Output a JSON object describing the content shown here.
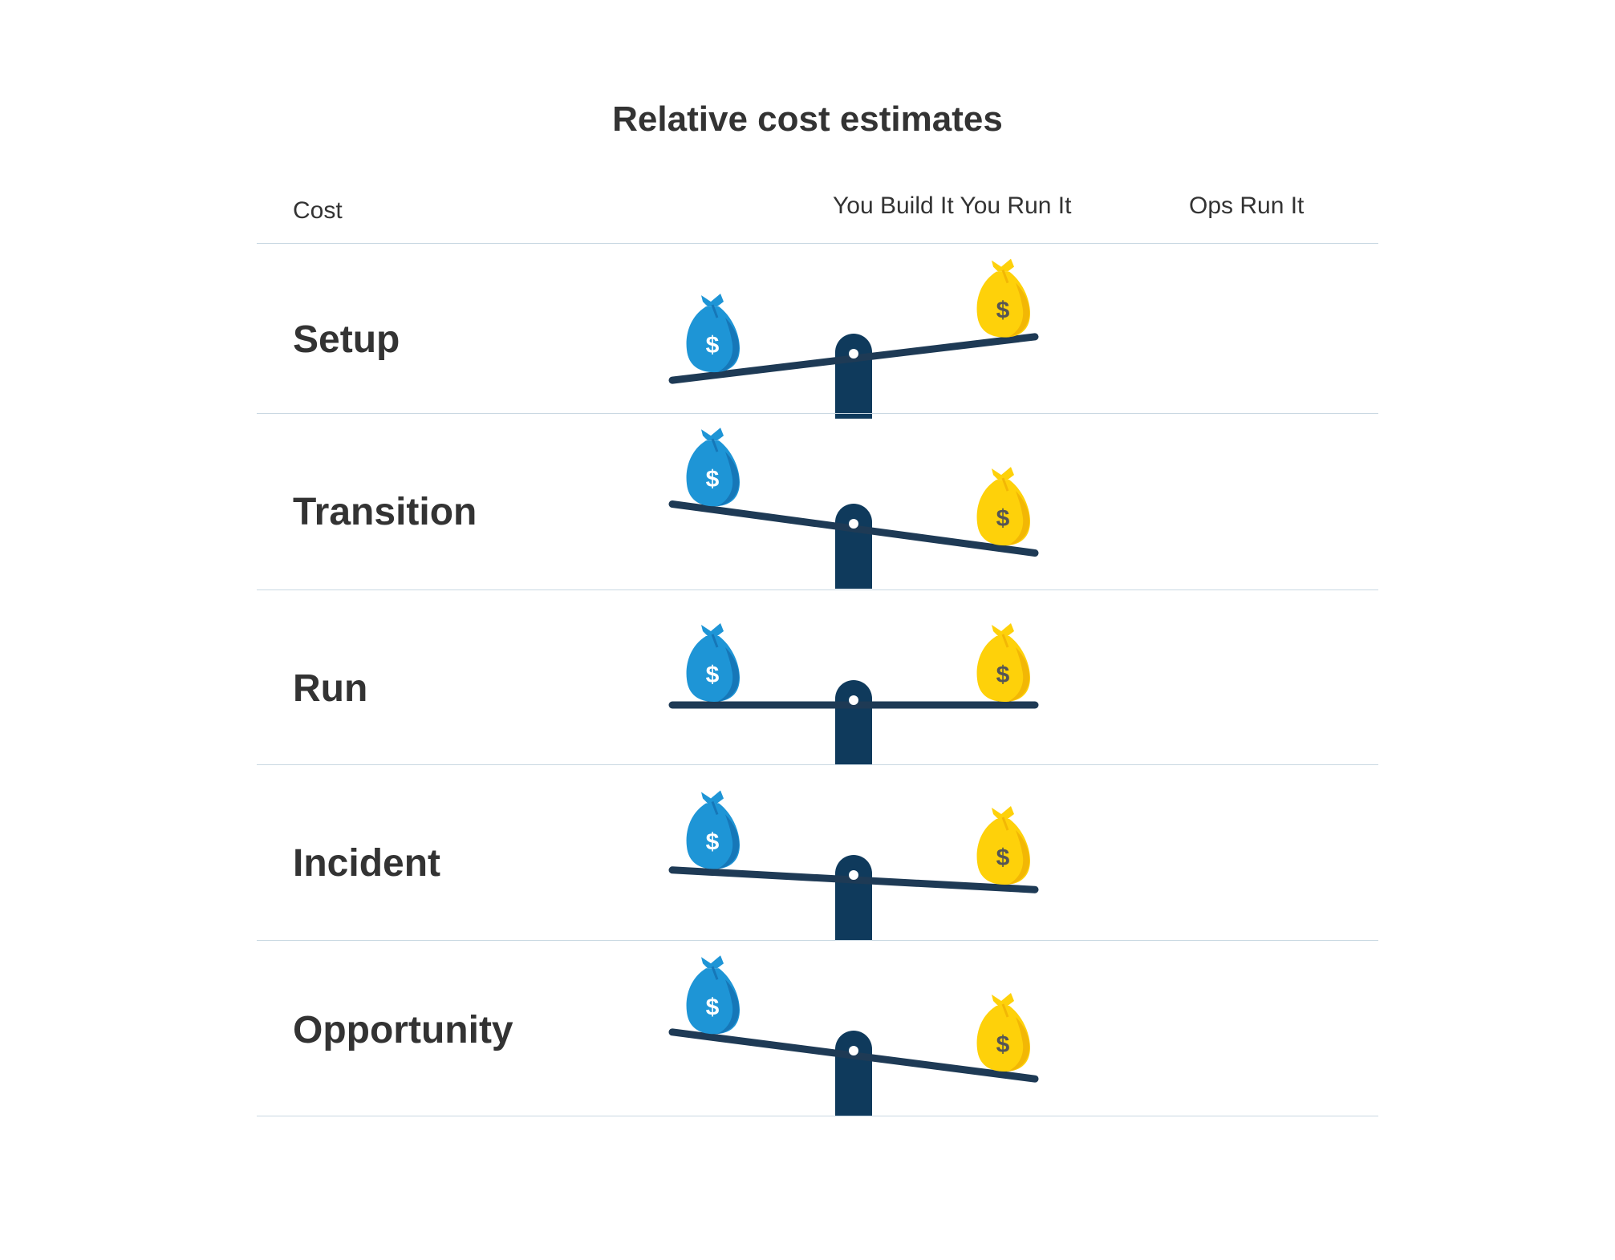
{
  "title": "Relative cost estimates",
  "columns": {
    "cost": "Cost",
    "option_a": "You Build It You Run It",
    "option_b": "Ops Run It"
  },
  "colors": {
    "option_a_bag": "#1e95d6",
    "option_a_bag_shade": "#1677b8",
    "option_b_bag": "#fed10a",
    "option_b_bag_shade": "#f2b705",
    "seesaw": "#1e3a55",
    "fulcrum": "#0f3a5c",
    "divider": "#c9d8e2"
  },
  "rows": [
    {
      "label": "Setup",
      "heavier": "You Build It You Run It",
      "tilt": -0.4
    },
    {
      "label": "Transition",
      "heavier": "Ops Run It",
      "tilt": 0.45
    },
    {
      "label": "Run",
      "heavier": "none",
      "tilt": 0.0
    },
    {
      "label": "Incident",
      "heavier": "Ops Run It",
      "tilt": 0.18
    },
    {
      "label": "Opportunity",
      "heavier": "Ops Run It",
      "tilt": 0.43
    }
  ],
  "icons": {
    "money_bag": "money-bag-icon",
    "dollar_symbol": "$"
  }
}
